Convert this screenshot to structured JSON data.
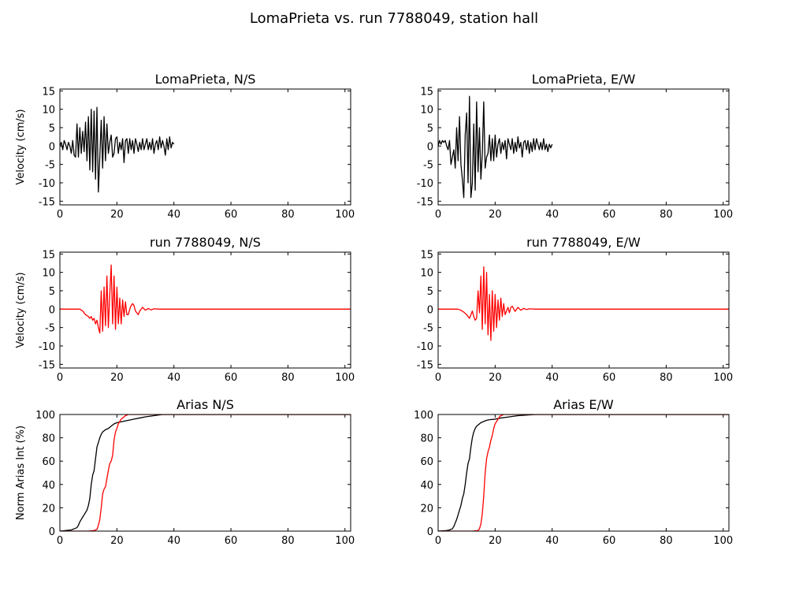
{
  "title": "LomaPrieta vs. run 7788049, station hall",
  "colors": {
    "record": "#000000",
    "simulation": "#ff0000"
  },
  "chart_data": [
    {
      "id": "vel_ns_record",
      "type": "line",
      "title": "LomaPrieta, N/S",
      "ylabel": "Velocity (cm/s)",
      "xlim": [
        0,
        102
      ],
      "ylim": [
        -16,
        15.5
      ],
      "xticks": [
        0,
        20,
        40,
        60,
        80,
        100
      ],
      "yticks": [
        -15,
        -10,
        -5,
        0,
        5,
        10,
        15
      ],
      "series": [
        {
          "color": "#000000",
          "x": [
            0,
            0.5,
            1,
            1.5,
            2,
            2.5,
            3,
            3.5,
            4,
            4.5,
            5,
            5.5,
            6,
            6.5,
            7,
            7.5,
            8,
            8.5,
            9,
            9.5,
            10,
            10.5,
            11,
            11.5,
            12,
            12.5,
            13,
            13.5,
            14,
            14.5,
            15,
            15.5,
            16,
            16.5,
            17,
            17.5,
            18,
            18.5,
            19,
            19.5,
            20,
            20.5,
            21,
            21.5,
            22,
            22.5,
            23,
            23.5,
            24,
            24.5,
            25,
            25.5,
            26,
            26.5,
            27,
            27.5,
            28,
            28.5,
            29,
            29.5,
            30,
            30.5,
            31,
            31.5,
            32,
            32.5,
            33,
            33.5,
            34,
            34.5,
            35,
            35.5,
            36,
            36.5,
            37,
            37.5,
            38,
            38.5,
            39,
            39.5,
            40
          ],
          "y": [
            0,
            1,
            -1,
            1.5,
            0.5,
            -1,
            1,
            0,
            -2,
            1.5,
            -2.5,
            -3,
            6,
            -3,
            5,
            -2,
            4,
            -1.5,
            6.5,
            -4,
            8,
            -6.5,
            10,
            -7,
            9.5,
            -9,
            10.5,
            -12.5,
            -3,
            7,
            -6,
            8,
            -4,
            6,
            -2,
            1,
            3,
            -3,
            -2,
            2,
            2.5,
            -2,
            1,
            -1,
            2,
            -4.5,
            1.5,
            2,
            -2,
            2,
            -1,
            1.5,
            -2,
            2,
            0.5,
            -1.5,
            1,
            -1,
            2,
            -1,
            0.5,
            2,
            -1,
            1,
            -1,
            2,
            -2,
            0.5,
            1.5,
            -1,
            2.5,
            -0.5,
            1.5,
            0,
            -2.5,
            2,
            -1,
            2.5,
            -0.5,
            1,
            0.5
          ]
        }
      ]
    },
    {
      "id": "vel_ew_record",
      "type": "line",
      "title": "LomaPrieta, E/W",
      "ylabel": "",
      "xlim": [
        0,
        102
      ],
      "ylim": [
        -16,
        15.5
      ],
      "xticks": [
        0,
        20,
        40,
        60,
        80,
        100
      ],
      "yticks": [
        -15,
        -10,
        -5,
        0,
        5,
        10,
        15
      ],
      "series": [
        {
          "color": "#000000",
          "x": [
            0,
            0.5,
            1,
            1.5,
            2,
            2.5,
            3,
            3.5,
            4,
            4.5,
            5,
            5.5,
            6,
            6.5,
            7,
            7.5,
            8,
            8.5,
            9,
            9.5,
            10,
            10.5,
            11,
            11.5,
            12,
            12.5,
            13,
            13.5,
            14,
            14.5,
            15,
            15.5,
            16,
            16.5,
            17,
            17.5,
            18,
            18.5,
            19,
            19.5,
            20,
            20.5,
            21,
            21.5,
            22,
            22.5,
            23,
            23.5,
            24,
            24.5,
            25,
            25.5,
            26,
            26.5,
            27,
            27.5,
            28,
            28.5,
            29,
            29.5,
            30,
            30.5,
            31,
            31.5,
            32,
            32.5,
            33,
            33.5,
            34,
            34.5,
            35,
            35.5,
            36,
            36.5,
            37,
            37.5,
            38,
            38.5,
            39,
            39.5,
            40
          ],
          "y": [
            0,
            1.5,
            0.5,
            1.5,
            1,
            1.5,
            0,
            -1,
            1.5,
            -5,
            -3,
            -1,
            -6,
            5,
            -4,
            8,
            -5,
            -9,
            -14,
            3,
            9,
            -10,
            13.5,
            -14,
            -10,
            6,
            -12,
            12,
            -7,
            5,
            -9,
            -2,
            12,
            -6,
            -3,
            -2,
            3,
            -4,
            2,
            -4,
            3,
            -3,
            0.5,
            2,
            -2,
            1,
            -1,
            1.5,
            -3.5,
            2,
            0.5,
            -1,
            2,
            -2,
            1,
            -1.5,
            2.5,
            -0.5,
            1,
            -3,
            1,
            1.5,
            -1,
            1.5,
            -2,
            1,
            -1.5,
            2,
            -1,
            2,
            0.5,
            -1,
            1,
            -1,
            2,
            -1,
            0.5,
            -1.5,
            0.5,
            -0.5,
            0.5
          ]
        }
      ]
    },
    {
      "id": "vel_ns_run",
      "type": "line",
      "title": "run 7788049, N/S",
      "ylabel": "Velocity (cm/s)",
      "xlim": [
        0,
        102
      ],
      "ylim": [
        -16,
        15.5
      ],
      "xticks": [
        0,
        20,
        40,
        60,
        80,
        100
      ],
      "yticks": [
        -15,
        -10,
        -5,
        0,
        5,
        10,
        15
      ],
      "series": [
        {
          "color": "#ff0000",
          "x": [
            0,
            7,
            8,
            9,
            10,
            10.5,
            11,
            11.5,
            12,
            12.5,
            13,
            13.5,
            14,
            14.5,
            15,
            15.5,
            16,
            16.5,
            17,
            17.5,
            18,
            18.5,
            19,
            19.5,
            20,
            20.5,
            21,
            21.5,
            22,
            22.5,
            23,
            23.5,
            24,
            24.5,
            25,
            25.5,
            26,
            26.5,
            27,
            27.5,
            28,
            29,
            30,
            31,
            32,
            33,
            35,
            38,
            40,
            102
          ],
          "y": [
            0,
            0,
            -0.5,
            -1.5,
            -2,
            -2.5,
            -2,
            -3,
            -2.5,
            -4,
            -3,
            -5,
            -6.5,
            5,
            -6,
            6,
            -4.5,
            9,
            -5,
            4,
            12,
            -4,
            9,
            -5.5,
            6,
            -4,
            3,
            -4,
            2.5,
            -2,
            2,
            -1.5,
            -1.5,
            0,
            1,
            1.5,
            1,
            -0.5,
            -1,
            -1.5,
            -0.5,
            0.5,
            -0.3,
            0.2,
            -0.2,
            0.1,
            0,
            0,
            0,
            0
          ]
        }
      ]
    },
    {
      "id": "vel_ew_run",
      "type": "line",
      "title": "run 7788049, E/W",
      "ylabel": "",
      "xlim": [
        0,
        102
      ],
      "ylim": [
        -16,
        15.5
      ],
      "xticks": [
        0,
        20,
        40,
        60,
        80,
        100
      ],
      "yticks": [
        -15,
        -10,
        -5,
        0,
        5,
        10,
        15
      ],
      "series": [
        {
          "color": "#ff0000",
          "x": [
            0,
            7,
            8,
            9,
            10,
            10.5,
            11,
            11.5,
            12,
            12.5,
            13,
            13.5,
            14,
            14.5,
            15,
            15.5,
            16,
            16.5,
            17,
            17.5,
            18,
            18.5,
            19,
            19.5,
            20,
            20.5,
            21,
            21.5,
            22,
            22.5,
            23,
            23.5,
            24,
            24.5,
            25,
            25.5,
            26,
            27,
            28,
            29,
            30,
            31,
            32,
            34,
            36,
            40,
            102
          ],
          "y": [
            0,
            0,
            -0.3,
            -0.8,
            -1.5,
            -2,
            -2.5,
            -1.5,
            -0.5,
            -2,
            -3,
            -2.5,
            5,
            -1,
            9,
            -5.5,
            11.5,
            -4,
            10,
            -7,
            4,
            -8.5,
            5,
            -6,
            4,
            -5,
            2.5,
            -3,
            3,
            -2,
            1.5,
            -1.5,
            -0.5,
            0.5,
            -1,
            0.5,
            0.8,
            -0.6,
            0.5,
            -0.3,
            0.2,
            -0.1,
            0.1,
            0,
            0,
            0,
            0
          ]
        }
      ]
    },
    {
      "id": "arias_ns",
      "type": "line",
      "title": "Arias N/S",
      "ylabel": "Norm Arias Int (%)",
      "xlim": [
        0,
        102
      ],
      "ylim": [
        0,
        100
      ],
      "xticks": [
        0,
        20,
        40,
        60,
        80,
        100
      ],
      "yticks": [
        0,
        20,
        40,
        60,
        80,
        100
      ],
      "series": [
        {
          "color": "#000000",
          "x": [
            0,
            2,
            4,
            5,
            6,
            6.5,
            7,
            7.5,
            8,
            8.5,
            9,
            9.5,
            10,
            10.5,
            11,
            11.5,
            12,
            12.5,
            13,
            13.5,
            14,
            14.5,
            15,
            16,
            17,
            18,
            19,
            20,
            22,
            24,
            26,
            28,
            30,
            33,
            36,
            40,
            102
          ],
          "y": [
            0,
            0.5,
            1,
            2,
            3,
            5,
            8,
            10,
            12,
            14,
            16,
            18,
            22,
            28,
            40,
            48,
            52,
            62,
            72,
            76,
            80,
            83,
            85,
            87,
            88,
            90,
            92,
            93,
            94,
            95,
            96,
            97,
            98,
            99,
            100,
            100,
            100
          ]
        },
        {
          "color": "#ff0000",
          "x": [
            0,
            6,
            10,
            12,
            13,
            13.5,
            14,
            14.5,
            15,
            15.5,
            16,
            16.5,
            17,
            17.5,
            18,
            18.5,
            19,
            19.5,
            20,
            20.5,
            21,
            21.5,
            22,
            22.5,
            23,
            23.5,
            24,
            26,
            30,
            102
          ],
          "y": [
            0,
            0,
            0,
            0.5,
            1.5,
            5,
            10,
            20,
            32,
            36,
            38,
            45,
            52,
            58,
            60,
            65,
            78,
            85,
            88,
            92,
            94,
            96,
            97,
            98,
            99,
            99.5,
            100,
            100,
            100,
            100
          ]
        }
      ]
    },
    {
      "id": "arias_ew",
      "type": "line",
      "title": "Arias E/W",
      "ylabel": "",
      "xlim": [
        0,
        102
      ],
      "ylim": [
        0,
        100
      ],
      "xticks": [
        0,
        20,
        40,
        60,
        80,
        100
      ],
      "yticks": [
        0,
        20,
        40,
        60,
        80,
        100
      ],
      "series": [
        {
          "color": "#000000",
          "x": [
            0,
            2,
            3,
            4,
            5,
            5.5,
            6,
            6.5,
            7,
            7.5,
            8,
            8.5,
            9,
            9.5,
            10,
            10.5,
            11,
            11.5,
            12,
            12.5,
            13,
            13.5,
            14,
            15,
            16,
            17,
            18,
            20,
            22,
            25,
            28,
            31,
            34,
            36,
            40,
            102
          ],
          "y": [
            0,
            0.3,
            0.5,
            1,
            2,
            4,
            7,
            10,
            14,
            18,
            22,
            28,
            32,
            40,
            50,
            58,
            62,
            72,
            80,
            85,
            88,
            90,
            91,
            93,
            94,
            95,
            95.5,
            96,
            97,
            98,
            99,
            99.5,
            100,
            100,
            100,
            100
          ]
        },
        {
          "color": "#ff0000",
          "x": [
            0,
            8,
            12,
            14,
            14.5,
            15,
            15.5,
            16,
            16.5,
            17,
            17.5,
            18,
            18.5,
            19,
            19.5,
            20,
            20.5,
            21,
            21.5,
            22,
            22.5,
            23,
            23.5,
            24,
            26,
            30,
            102
          ],
          "y": [
            0,
            0,
            0,
            0.5,
            2,
            6,
            15,
            30,
            50,
            62,
            68,
            72,
            78,
            82,
            88,
            92,
            94,
            96,
            98,
            99,
            99.5,
            100,
            100,
            100,
            100,
            100,
            100
          ]
        }
      ]
    }
  ]
}
